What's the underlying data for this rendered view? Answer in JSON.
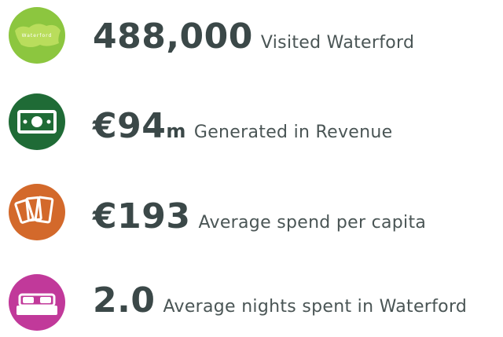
{
  "items": [
    {
      "icon_label": "Waterford",
      "value": "488,000",
      "description": "Visited Waterford"
    },
    {
      "value": "€94",
      "suffix": "m",
      "description": "Generated in Revenue"
    },
    {
      "value": "€193",
      "description": "Average spend per capita"
    },
    {
      "value": "2.0",
      "description": "Average nights spent in Waterford"
    }
  ]
}
